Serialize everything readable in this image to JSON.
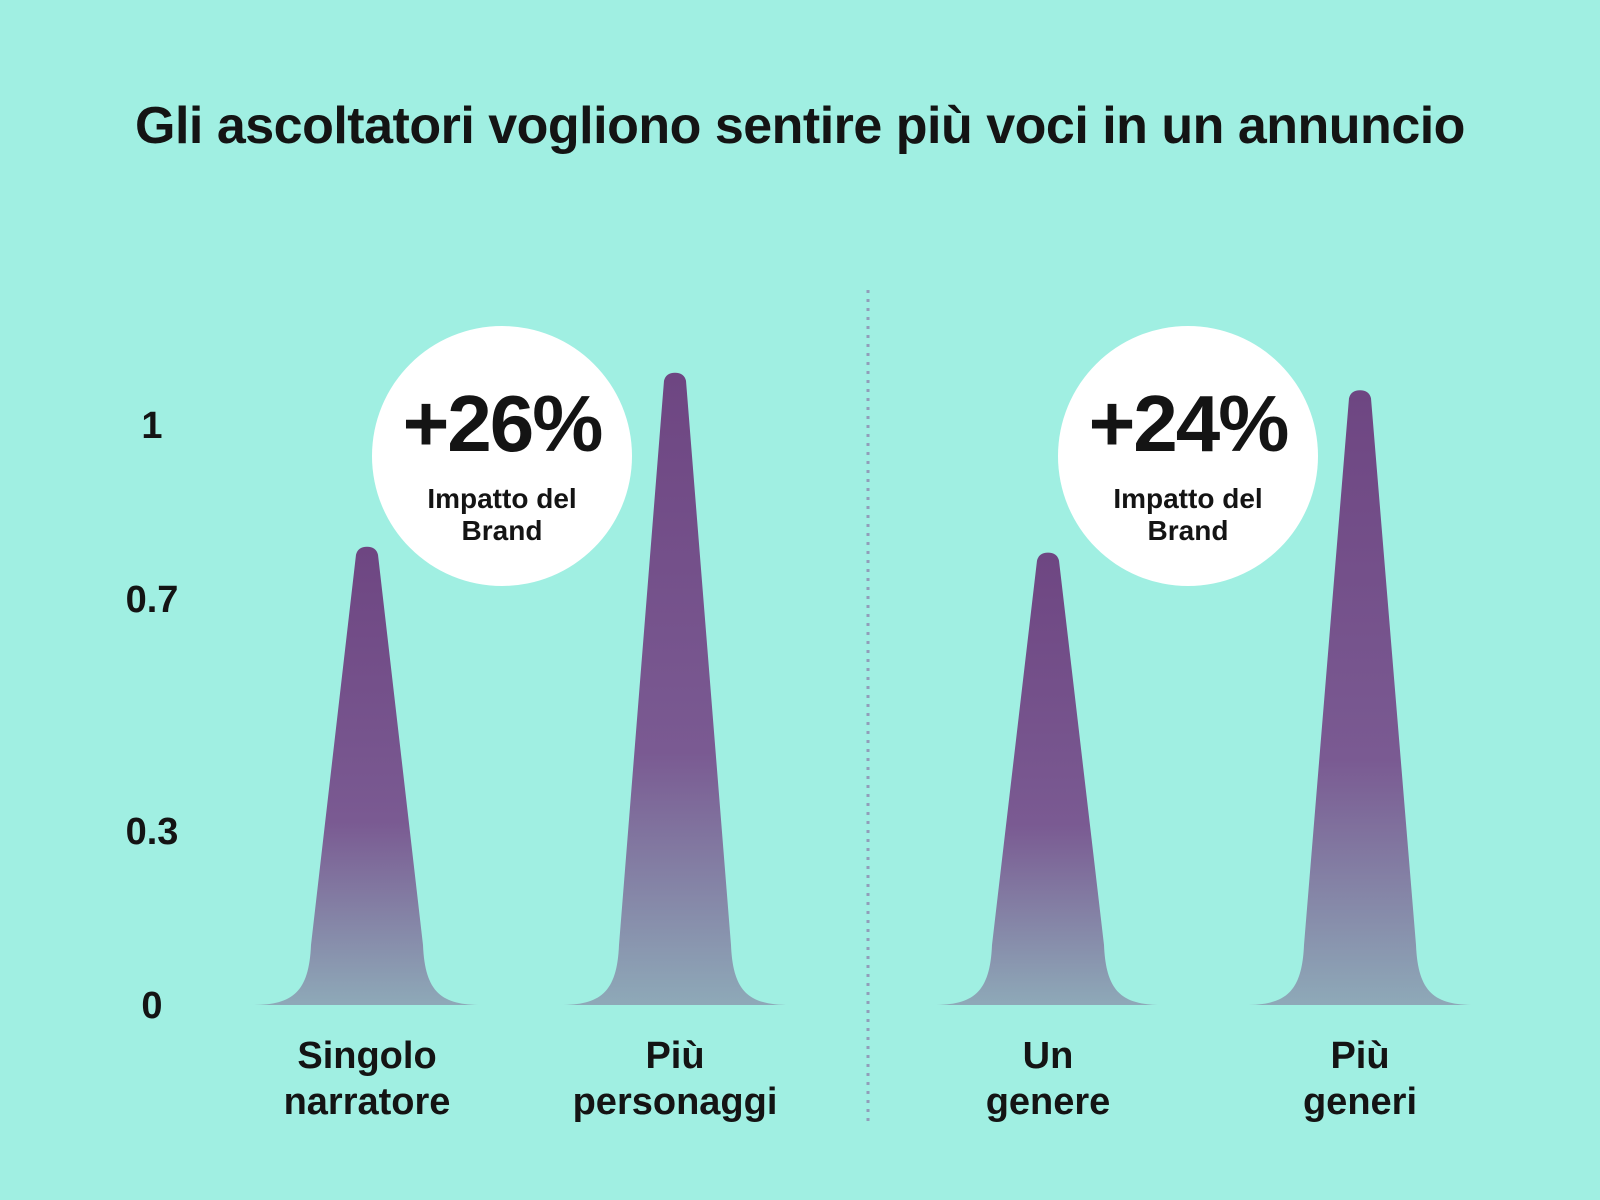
{
  "chart_data": {
    "type": "bar",
    "title": "Gli ascoltatori vogliono sentire più voci in un annuncio",
    "xlabel": "",
    "ylabel": "",
    "ylim": [
      0,
      1.1
    ],
    "yticks": [
      "1",
      "0.7",
      "0.3",
      "0"
    ],
    "grid": true,
    "categories": [
      "Singolo narratore",
      "Più personaggi",
      "Un genere",
      "Più generi"
    ],
    "category_lines": [
      [
        "Singolo",
        "narratore"
      ],
      [
        "Più",
        "personaggi"
      ],
      [
        "Un",
        "genere"
      ],
      [
        "Più",
        "generi"
      ]
    ],
    "values": [
      0.79,
      1.09,
      0.78,
      1.06
    ],
    "annotations": [
      {
        "value": "+26%",
        "label_lines": [
          "Impatto del",
          "Brand"
        ],
        "between": [
          0,
          1
        ]
      },
      {
        "value": "+24%",
        "label_lines": [
          "Impatto del",
          "Brand"
        ],
        "between": [
          2,
          3
        ]
      }
    ],
    "colors": {
      "background": "#a0efe2",
      "bar_top": "#6e4682",
      "bar_bottom": "#8a9db0",
      "grid": "#8f6ea3",
      "badge": "#ffffff",
      "text": "#141414"
    }
  }
}
